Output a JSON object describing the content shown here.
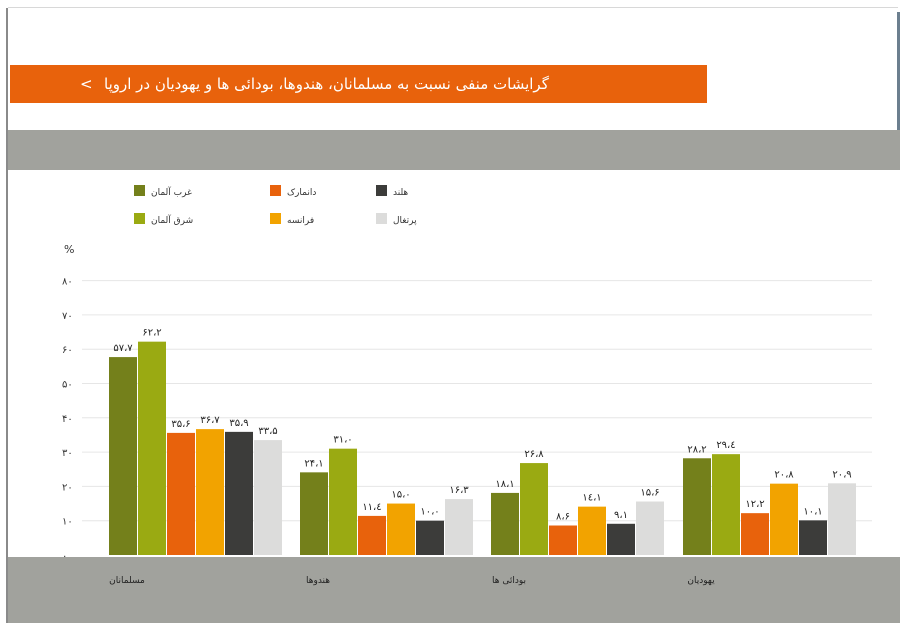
{
  "header": {
    "title": "گرایشات منفی نسبت به مسلمانان، هندوها، بودائی ها و یهودیان در اروپا",
    "chevron": "<"
  },
  "chart_data": {
    "type": "bar",
    "ylabel": "%",
    "ylim": [
      0,
      85
    ],
    "yticks": [
      0,
      10,
      20,
      30,
      40,
      50,
      60,
      70,
      80
    ],
    "ytick_labels": [
      "۰",
      "۱۰",
      "۲۰",
      "۳۰",
      "۴۰",
      "۵۰",
      "۶۰",
      "۷۰",
      "۸۰"
    ],
    "categories": [
      "مسلمانان",
      "هندوها",
      "بودائی ها",
      "یهودیان"
    ],
    "legend_placement": "top-left",
    "grid": true,
    "series": [
      {
        "name": "غرب آلمان",
        "color": "#74801b",
        "values": [
          57.7,
          24.1,
          18.1,
          28.2
        ],
        "labels": [
          "۵۷،۷",
          "۲۴،۱",
          "۱۸،۱",
          "۲۸،۲"
        ]
      },
      {
        "name": "شرق آلمان",
        "color": "#9aaa12",
        "values": [
          62.2,
          31.0,
          26.8,
          29.4
        ],
        "labels": [
          "۶۲،۲",
          "۳۱،۰",
          "۲۶،۸",
          "۲۹،٤"
        ]
      },
      {
        "name": "دانمارک",
        "color": "#e8620c",
        "values": [
          35.6,
          11.4,
          8.6,
          12.2
        ],
        "labels": [
          "۳۵،۶",
          "۱۱،٤",
          "۸،۶",
          "۱۲،۲"
        ]
      },
      {
        "name": "فرانسه",
        "color": "#f2a300",
        "values": [
          36.7,
          15.0,
          14.1,
          20.8
        ],
        "labels": [
          "۳۶،۷",
          "۱۵،۰",
          "۱٤،۱",
          "۲۰،۸"
        ]
      },
      {
        "name": "هلند",
        "color": "#3c3c3a",
        "values": [
          35.9,
          10.0,
          9.1,
          10.1
        ],
        "labels": [
          "۳۵،۹",
          "۱۰،۰",
          "۹،۱",
          "۱۰،۱"
        ]
      },
      {
        "name": "پرتغال",
        "color": "#dcdcdb",
        "values": [
          33.5,
          16.3,
          15.6,
          20.9
        ],
        "labels": [
          "۳۳،۵",
          "۱۶،۳",
          "۱۵،۶",
          "۲۰،۹"
        ]
      }
    ]
  }
}
